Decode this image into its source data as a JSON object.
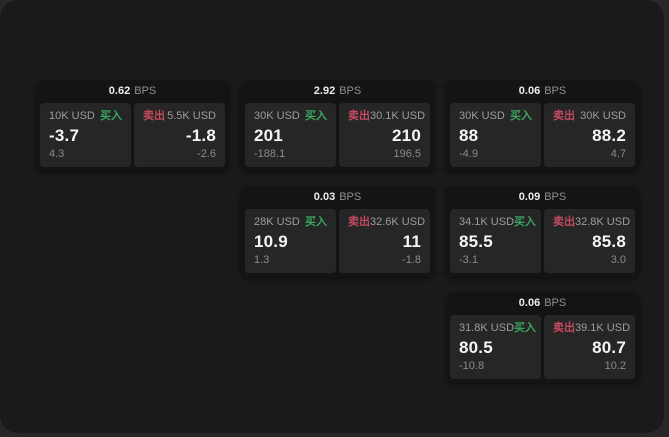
{
  "labels": {
    "buy": "买入",
    "sell": "卖出",
    "bps": "BPS"
  },
  "colors": {
    "buy_green": "#3aa35e",
    "sell_red": "#c04a5e",
    "window_background": "#1a1a1a",
    "card_background": "#141414",
    "panel_background": "#262626"
  },
  "cards": [
    {
      "bps": "0.62",
      "buy": {
        "amount": "10K USD",
        "price": "-3.7",
        "delta": "4.3"
      },
      "sell": {
        "amount": "5.5K USD",
        "price": "-1.8",
        "delta": "-2.6"
      }
    },
    {
      "bps": "2.92",
      "buy": {
        "amount": "30K USD",
        "price": "201",
        "delta": "-188.1"
      },
      "sell": {
        "amount": "30.1K USD",
        "price": "210",
        "delta": "196.5"
      }
    },
    {
      "bps": "0.06",
      "buy": {
        "amount": "30K USD",
        "price": "88",
        "delta": "-4.9"
      },
      "sell": {
        "amount": "30K USD",
        "price": "88.2",
        "delta": "4.7"
      }
    },
    {
      "bps": "0.03",
      "buy": {
        "amount": "28K USD",
        "price": "10.9",
        "delta": "1.3"
      },
      "sell": {
        "amount": "32.6K USD",
        "price": "11",
        "delta": "-1.8"
      }
    },
    {
      "bps": "0.09",
      "buy": {
        "amount": "34.1K USD",
        "price": "85.5",
        "delta": "-3.1"
      },
      "sell": {
        "amount": "32.8K USD",
        "price": "85.8",
        "delta": "3.0"
      }
    },
    {
      "bps": "0.06",
      "buy": {
        "amount": "31.8K USD",
        "price": "80.5",
        "delta": "-10.8"
      },
      "sell": {
        "amount": "39.1K USD",
        "price": "80.7",
        "delta": "10.2"
      }
    }
  ]
}
